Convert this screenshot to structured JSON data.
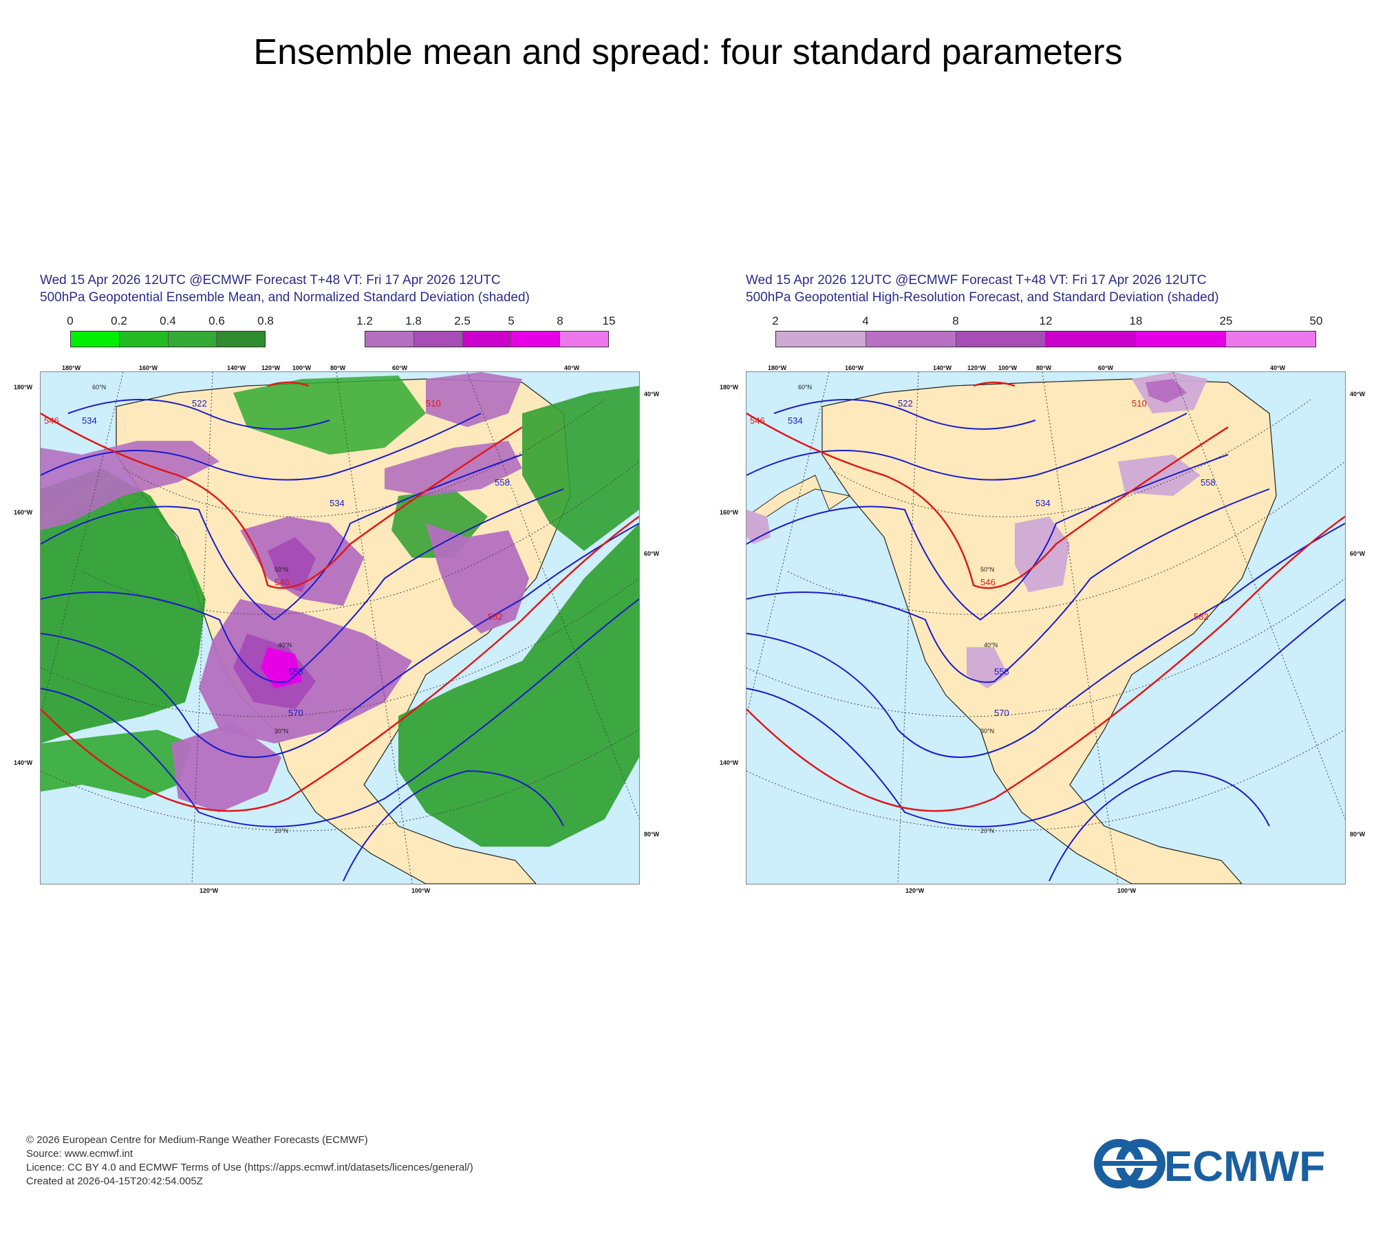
{
  "page": {
    "title": "Ensemble mean and spread: four standard parameters"
  },
  "panels": [
    {
      "title_line1": "Wed 15 Apr 2026 12UTC @ECMWF Forecast T+48 VT: Fri 17 Apr 2026 12UTC",
      "title_line2": "500hPa Geopotential Ensemble Mean, and Normalized Standard Deviation (shaded)",
      "legends": [
        {
          "ticks": [
            "0",
            "0.2",
            "0.4",
            "0.6",
            "0.8"
          ],
          "colors": [
            "#00ee00",
            "#22bb22",
            "#33aa33",
            "#2e8b2e"
          ]
        },
        {
          "ticks": [
            "1.2",
            "1.8",
            "2.5",
            "5",
            "8",
            "15"
          ],
          "colors": [
            "#b46fc0",
            "#a64db8",
            "#cc00cc",
            "#e600e6",
            "#ee77ee"
          ]
        }
      ]
    },
    {
      "title_line1": "Wed 15 Apr 2026 12UTC @ECMWF Forecast T+48 VT: Fri 17 Apr 2026 12UTC",
      "title_line2": "500hPa Geopotential High-Resolution Forecast, and Standard Deviation (shaded)",
      "legends": [
        {
          "ticks": [
            "2",
            "4",
            "8",
            "12",
            "18",
            "25",
            "50"
          ],
          "colors": [
            "#cfa9d6",
            "#b870c2",
            "#a64db8",
            "#cc00cc",
            "#e600e6",
            "#ee77ee"
          ]
        }
      ]
    }
  ],
  "map_labels": {
    "lon_top": [
      "180°W",
      "160°W",
      "140°W",
      "120°W",
      "100°W",
      "80°W",
      "60°W",
      "40°W"
    ],
    "lon_bottom": [
      "120°W",
      "100°W"
    ],
    "lon_left": [
      "180°W",
      "160°W",
      "140°W"
    ],
    "lon_right": [
      "40°W",
      "60°W",
      "80°W"
    ],
    "lat": [
      "60°N",
      "50°N",
      "40°N",
      "30°N",
      "20°N"
    ],
    "contours_blue": [
      "534",
      "522",
      "558",
      "570",
      "534",
      "558"
    ],
    "contours_red": [
      "546",
      "582",
      "510",
      "546"
    ]
  },
  "footer": {
    "line1": "© 2026 European Centre for Medium-Range Weather Forecasts (ECMWF)",
    "line2": "Source: www.ecmwf.int",
    "line3": "Licence: CC BY 4.0 and ECMWF Terms of Use (https://apps.ecmwf.int/datasets/licences/general/)",
    "line4": "Created at 2026-04-15T20:42:54.005Z"
  },
  "logo": {
    "text": "ECMWF",
    "color": "#1a5fa0"
  }
}
